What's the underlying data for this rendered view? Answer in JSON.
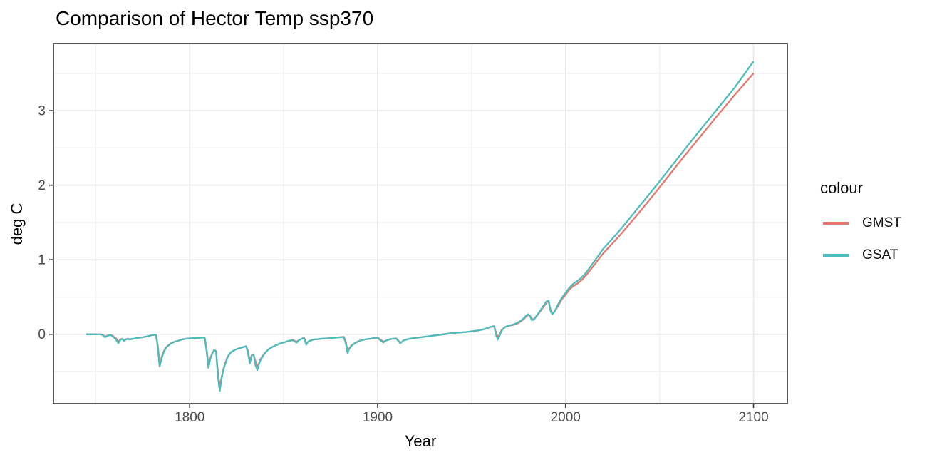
{
  "chart_data": {
    "type": "line",
    "title": "Comparison of Hector Temp ssp370",
    "xlabel": "Year",
    "ylabel": "deg C",
    "legend_title": "colour",
    "legend_position": "right",
    "grid": true,
    "x_domain": [
      1727.5,
      2118.0
    ],
    "y_domain": [
      -0.93,
      3.9
    ],
    "x_major_ticks": [
      1800,
      1900,
      2000,
      2100
    ],
    "x_minor_ticks": [
      1750,
      1850,
      1950,
      2050
    ],
    "y_major_ticks": [
      0,
      1,
      2,
      3
    ],
    "y_minor_ticks": [
      -0.5,
      0.5,
      1.5,
      2.5,
      3.5
    ],
    "style": {
      "panel_border": "#333333",
      "grid_major": "#e7e7e7",
      "grid_minor": "#f2f2f2",
      "axis_text": "#4d4d4d",
      "tick_mark": "#333333",
      "background": "#ffffff"
    },
    "x": [
      1745,
      1750,
      1753,
      1755,
      1756,
      1757,
      1758,
      1759,
      1760,
      1761,
      1762,
      1763,
      1764,
      1765,
      1766,
      1767,
      1768,
      1770,
      1772,
      1775,
      1778,
      1780,
      1782,
      1783,
      1784,
      1785,
      1786,
      1787,
      1788,
      1790,
      1792,
      1794,
      1796,
      1798,
      1800,
      1803,
      1806,
      1808,
      1809,
      1810,
      1811,
      1812,
      1813,
      1814,
      1815,
      1816,
      1817,
      1818,
      1819,
      1820,
      1821,
      1822,
      1824,
      1826,
      1828,
      1830,
      1831,
      1832,
      1833,
      1834,
      1835,
      1836,
      1837,
      1838,
      1840,
      1842,
      1844,
      1846,
      1848,
      1850,
      1853,
      1855,
      1856,
      1857,
      1858,
      1860,
      1861,
      1862,
      1863,
      1864,
      1866,
      1868,
      1870,
      1873,
      1876,
      1880,
      1882,
      1883,
      1884,
      1885,
      1886,
      1888,
      1890,
      1892,
      1894,
      1896,
      1898,
      1900,
      1902,
      1903,
      1904,
      1906,
      1908,
      1910,
      1912,
      1913,
      1914,
      1916,
      1918,
      1920,
      1923,
      1926,
      1929,
      1932,
      1935,
      1938,
      1941,
      1944,
      1947,
      1950,
      1953,
      1956,
      1958,
      1960,
      1962,
      1963,
      1964,
      1965,
      1966,
      1967,
      1968,
      1970,
      1972,
      1974,
      1976,
      1978,
      1979,
      1980,
      1981,
      1982,
      1983,
      1984,
      1986,
      1988,
      1990,
      1991,
      1992,
      1993,
      1994,
      1995,
      1996,
      1997,
      1998,
      2000,
      2002,
      2004,
      2006,
      2008,
      2010,
      2012,
      2014,
      2016,
      2018,
      2020,
      2025,
      2030,
      2035,
      2040,
      2045,
      2050,
      2055,
      2060,
      2065,
      2070,
      2075,
      2080,
      2085,
      2090,
      2095,
      2100
    ],
    "series": [
      {
        "name": "GMST",
        "color": "#e4786d",
        "values": [
          0.0,
          0.0,
          0.0,
          -0.03,
          -0.02,
          -0.015,
          -0.01,
          -0.02,
          -0.04,
          -0.06,
          -0.105,
          -0.07,
          -0.06,
          -0.08,
          -0.07,
          -0.06,
          -0.065,
          -0.06,
          -0.05,
          -0.04,
          -0.025,
          -0.01,
          -0.005,
          -0.15,
          -0.38,
          -0.31,
          -0.24,
          -0.19,
          -0.16,
          -0.12,
          -0.1,
          -0.085,
          -0.07,
          -0.06,
          -0.055,
          -0.05,
          -0.045,
          -0.045,
          -0.2,
          -0.41,
          -0.32,
          -0.25,
          -0.21,
          -0.225,
          -0.5,
          -0.71,
          -0.57,
          -0.46,
          -0.38,
          -0.31,
          -0.27,
          -0.24,
          -0.21,
          -0.19,
          -0.175,
          -0.16,
          -0.22,
          -0.36,
          -0.28,
          -0.27,
          -0.36,
          -0.44,
          -0.38,
          -0.32,
          -0.25,
          -0.2,
          -0.17,
          -0.145,
          -0.125,
          -0.11,
          -0.085,
          -0.075,
          -0.09,
          -0.1,
          -0.08,
          -0.055,
          -0.05,
          -0.125,
          -0.1,
          -0.085,
          -0.07,
          -0.065,
          -0.06,
          -0.055,
          -0.05,
          -0.04,
          -0.035,
          -0.1,
          -0.22,
          -0.185,
          -0.15,
          -0.115,
          -0.09,
          -0.075,
          -0.065,
          -0.06,
          -0.05,
          -0.045,
          -0.08,
          -0.1,
          -0.09,
          -0.07,
          -0.06,
          -0.055,
          -0.11,
          -0.1,
          -0.08,
          -0.065,
          -0.055,
          -0.05,
          -0.04,
          -0.03,
          -0.02,
          -0.01,
          0.0,
          0.01,
          0.02,
          0.025,
          0.03,
          0.04,
          0.05,
          0.065,
          0.08,
          0.095,
          0.11,
          0.02,
          -0.04,
          0.0,
          0.06,
          0.08,
          0.1,
          0.115,
          0.125,
          0.14,
          0.17,
          0.21,
          0.24,
          0.26,
          0.25,
          0.21,
          0.2,
          0.225,
          0.29,
          0.36,
          0.43,
          0.44,
          0.33,
          0.28,
          0.3,
          0.34,
          0.38,
          0.425,
          0.47,
          0.53,
          0.6,
          0.645,
          0.675,
          0.715,
          0.765,
          0.825,
          0.89,
          0.955,
          1.02,
          1.085,
          1.22,
          1.36,
          1.51,
          1.66,
          1.815,
          1.97,
          2.13,
          2.29,
          2.445,
          2.6,
          2.755,
          2.91,
          3.06,
          3.21,
          3.355,
          3.5
        ]
      },
      {
        "name": "GSAT",
        "color": "#4dbcbd",
        "values": [
          0.0,
          0.0,
          0.0,
          -0.04,
          -0.02,
          -0.015,
          -0.01,
          -0.03,
          -0.05,
          -0.08,
          -0.12,
          -0.08,
          -0.06,
          -0.09,
          -0.07,
          -0.06,
          -0.07,
          -0.06,
          -0.05,
          -0.04,
          -0.025,
          -0.01,
          -0.005,
          -0.17,
          -0.43,
          -0.33,
          -0.25,
          -0.2,
          -0.165,
          -0.125,
          -0.1,
          -0.085,
          -0.07,
          -0.06,
          -0.055,
          -0.05,
          -0.045,
          -0.045,
          -0.23,
          -0.45,
          -0.33,
          -0.26,
          -0.21,
          -0.235,
          -0.56,
          -0.76,
          -0.59,
          -0.47,
          -0.39,
          -0.32,
          -0.27,
          -0.24,
          -0.21,
          -0.19,
          -0.175,
          -0.16,
          -0.25,
          -0.39,
          -0.29,
          -0.27,
          -0.41,
          -0.48,
          -0.39,
          -0.33,
          -0.255,
          -0.2,
          -0.17,
          -0.145,
          -0.125,
          -0.11,
          -0.085,
          -0.08,
          -0.1,
          -0.11,
          -0.08,
          -0.055,
          -0.06,
          -0.14,
          -0.1,
          -0.085,
          -0.07,
          -0.065,
          -0.06,
          -0.055,
          -0.05,
          -0.04,
          -0.04,
          -0.12,
          -0.25,
          -0.19,
          -0.155,
          -0.12,
          -0.09,
          -0.075,
          -0.065,
          -0.06,
          -0.05,
          -0.045,
          -0.095,
          -0.11,
          -0.09,
          -0.07,
          -0.06,
          -0.06,
          -0.12,
          -0.1,
          -0.08,
          -0.065,
          -0.055,
          -0.05,
          -0.04,
          -0.03,
          -0.02,
          -0.01,
          0.0,
          0.01,
          0.02,
          0.025,
          0.03,
          0.04,
          0.05,
          0.065,
          0.08,
          0.1,
          0.11,
          -0.01,
          -0.07,
          -0.01,
          0.05,
          0.08,
          0.1,
          0.12,
          0.13,
          0.15,
          0.18,
          0.22,
          0.25,
          0.27,
          0.25,
          0.19,
          0.195,
          0.23,
          0.3,
          0.375,
          0.445,
          0.45,
          0.31,
          0.27,
          0.3,
          0.35,
          0.4,
          0.445,
          0.49,
          0.555,
          0.625,
          0.675,
          0.71,
          0.75,
          0.8,
          0.865,
          0.935,
          1.005,
          1.075,
          1.145,
          1.285,
          1.43,
          1.585,
          1.74,
          1.895,
          2.05,
          2.21,
          2.37,
          2.53,
          2.69,
          2.845,
          3.0,
          3.155,
          3.31,
          3.485,
          3.66
        ]
      }
    ]
  }
}
